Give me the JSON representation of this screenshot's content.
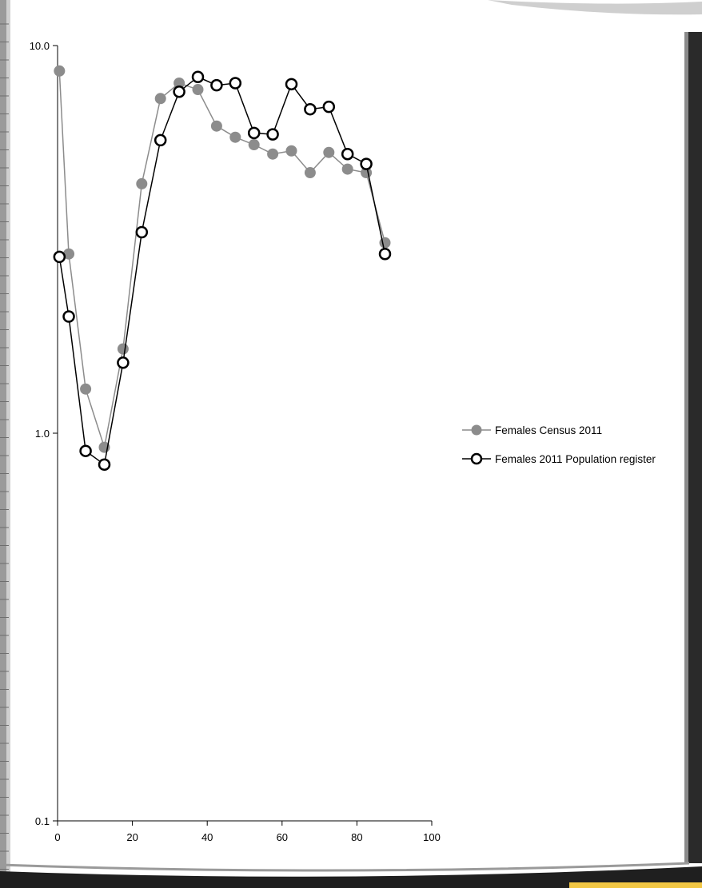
{
  "chart_data": {
    "type": "line",
    "title": "",
    "xlabel": "",
    "ylabel": "",
    "y_scale": "log",
    "xlim": [
      0,
      100
    ],
    "ylim": [
      0.1,
      10
    ],
    "x_ticks": [
      "0",
      "20",
      "40",
      "60",
      "80",
      "100"
    ],
    "y_ticks": [
      "10.0",
      "1.0",
      "0.1"
    ],
    "grid": false,
    "legend_position": "right",
    "series": [
      {
        "name": "Females Census 2011",
        "color": "#8c8c8c",
        "marker": "filled-circle",
        "x": [
          0.5,
          3,
          7.5,
          12.5,
          17.5,
          22.5,
          27.5,
          32.5,
          37.5,
          42.5,
          47.5,
          52.5,
          57.5,
          62.5,
          67.5,
          72.5,
          77.5,
          82.5,
          87.5
        ],
        "y": [
          8.6,
          2.9,
          1.3,
          0.92,
          1.65,
          4.4,
          7.3,
          8.0,
          7.7,
          6.2,
          5.8,
          5.55,
          5.25,
          5.35,
          4.7,
          5.3,
          4.8,
          4.7,
          3.1
        ]
      },
      {
        "name": "Females 2011 Population register",
        "color": "#000000",
        "marker": "open-circle",
        "x": [
          0.5,
          3,
          7.5,
          12.5,
          17.5,
          22.5,
          27.5,
          32.5,
          37.5,
          42.5,
          47.5,
          52.5,
          57.5,
          62.5,
          67.5,
          72.5,
          77.5,
          82.5,
          87.5
        ],
        "y": [
          2.85,
          2.0,
          0.9,
          0.83,
          1.52,
          3.3,
          5.7,
          7.6,
          8.3,
          7.9,
          8.0,
          5.95,
          5.9,
          7.95,
          6.85,
          6.95,
          5.25,
          4.95,
          2.9
        ]
      }
    ]
  }
}
